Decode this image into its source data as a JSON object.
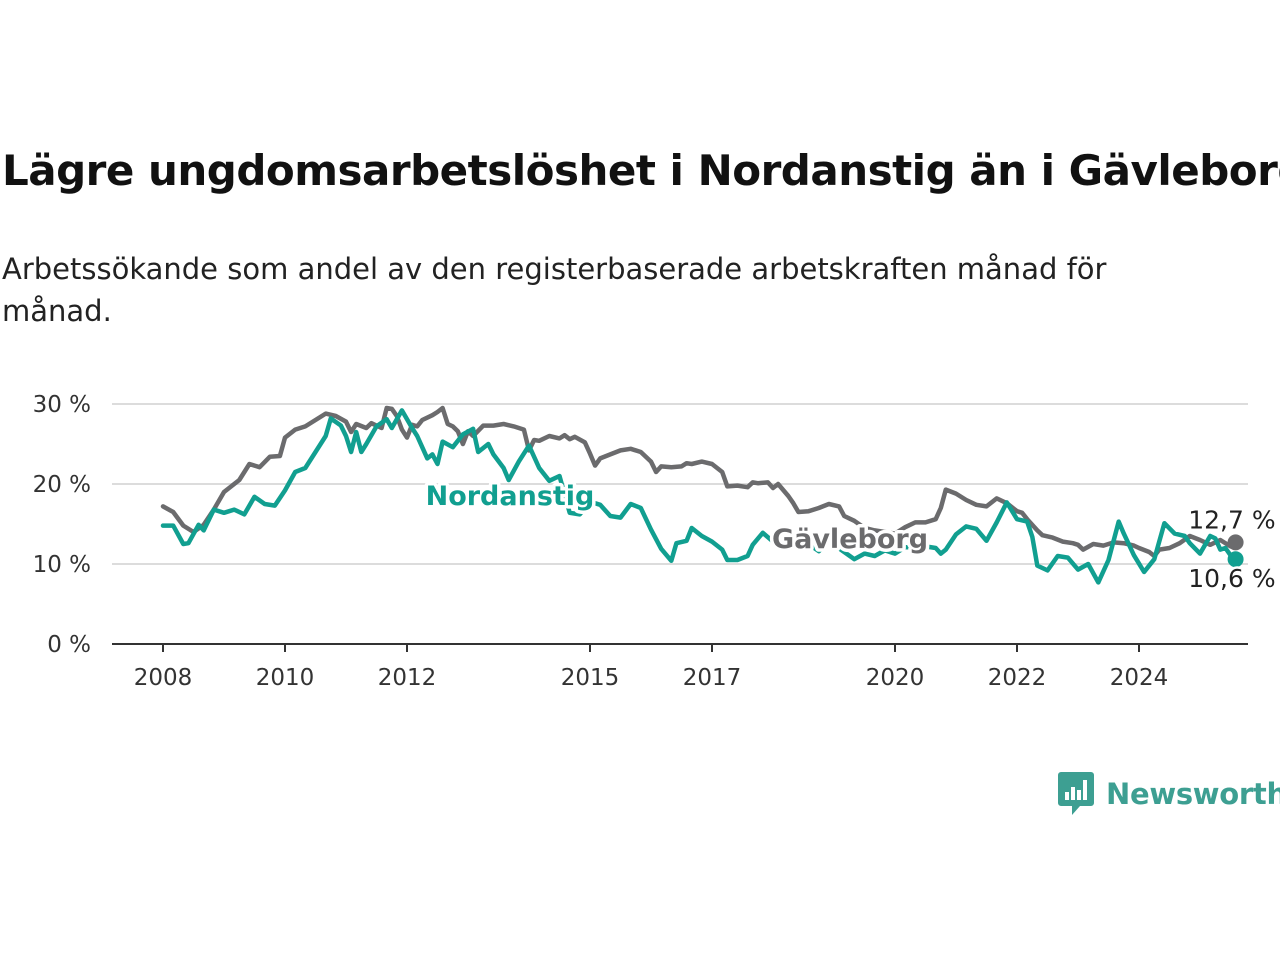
{
  "title": "Lägre ungdomsarbetslöshet i Nordanstig än i Gävleborg",
  "subtitle": "Arbetssökande som andel av den registerbaserade arbetskraften månad för månad.",
  "brand": {
    "name": "Newsworthy",
    "icon": "newsworthy-logo-icon",
    "color": "#3d9f92"
  },
  "chart_data": {
    "type": "line",
    "x_ticks": [
      "2008",
      "2010",
      "2012",
      "2015",
      "2017",
      "2020",
      "2022",
      "2024"
    ],
    "y_ticks": [
      "0 %",
      "10 %",
      "20 %",
      "30 %"
    ],
    "ylim": [
      0,
      30
    ],
    "xlim": [
      "2007-01",
      "2025-09"
    ],
    "grid": true,
    "legend": "inline labels",
    "series": [
      {
        "name": "Gävleborg",
        "color": "#6b6b6d",
        "end_label": "12,7 %",
        "points": [
          [
            "2008-01",
            17.2
          ],
          [
            "2008-03",
            16.5
          ],
          [
            "2008-05",
            14.8
          ],
          [
            "2008-07",
            14.0
          ],
          [
            "2008-09",
            14.9
          ],
          [
            "2008-11",
            16.8
          ],
          [
            "2009-01",
            19.0
          ],
          [
            "2009-04",
            20.5
          ],
          [
            "2009-06",
            22.5
          ],
          [
            "2009-08",
            22.1
          ],
          [
            "2009-10",
            23.4
          ],
          [
            "2009-12",
            23.5
          ],
          [
            "2010-01",
            25.8
          ],
          [
            "2010-03",
            26.8
          ],
          [
            "2010-05",
            27.2
          ],
          [
            "2010-07",
            28.0
          ],
          [
            "2010-09",
            28.8
          ],
          [
            "2010-11",
            28.5
          ],
          [
            "2011-01",
            27.8
          ],
          [
            "2011-02",
            26.5
          ],
          [
            "2011-03",
            27.5
          ],
          [
            "2011-05",
            27.0
          ],
          [
            "2011-06",
            27.6
          ],
          [
            "2011-08",
            27.0
          ],
          [
            "2011-09",
            29.5
          ],
          [
            "2011-10",
            29.4
          ],
          [
            "2011-11",
            28.5
          ],
          [
            "2011-12",
            26.8
          ],
          [
            "2012-01",
            25.8
          ],
          [
            "2012-02",
            27.4
          ],
          [
            "2012-03",
            27.2
          ],
          [
            "2012-04",
            28.0
          ],
          [
            "2012-06",
            28.6
          ],
          [
            "2012-07",
            29.0
          ],
          [
            "2012-08",
            29.5
          ],
          [
            "2012-09",
            27.5
          ],
          [
            "2012-10",
            27.2
          ],
          [
            "2012-11",
            26.6
          ],
          [
            "2012-12",
            25.0
          ],
          [
            "2013-01",
            26.6
          ],
          [
            "2013-02",
            26.0
          ],
          [
            "2013-04",
            27.3
          ],
          [
            "2013-06",
            27.3
          ],
          [
            "2013-08",
            27.5
          ],
          [
            "2013-10",
            27.2
          ],
          [
            "2013-12",
            26.8
          ],
          [
            "2014-01",
            24.2
          ],
          [
            "2014-02",
            25.5
          ],
          [
            "2014-03",
            25.4
          ],
          [
            "2014-05",
            26.0
          ],
          [
            "2014-07",
            25.7
          ],
          [
            "2014-08",
            26.1
          ],
          [
            "2014-09",
            25.6
          ],
          [
            "2014-10",
            25.9
          ],
          [
            "2014-12",
            25.2
          ],
          [
            "2015-01",
            23.8
          ],
          [
            "2015-02",
            22.3
          ],
          [
            "2015-03",
            23.2
          ],
          [
            "2015-05",
            23.7
          ],
          [
            "2015-07",
            24.2
          ],
          [
            "2015-09",
            24.4
          ],
          [
            "2015-11",
            24.0
          ],
          [
            "2016-01",
            22.8
          ],
          [
            "2016-02",
            21.5
          ],
          [
            "2016-03",
            22.2
          ],
          [
            "2016-05",
            22.1
          ],
          [
            "2016-07",
            22.2
          ],
          [
            "2016-08",
            22.6
          ],
          [
            "2016-09",
            22.5
          ],
          [
            "2016-11",
            22.8
          ],
          [
            "2017-01",
            22.5
          ],
          [
            "2017-03",
            21.5
          ],
          [
            "2017-04",
            19.7
          ],
          [
            "2017-06",
            19.8
          ],
          [
            "2017-08",
            19.6
          ],
          [
            "2017-09",
            20.2
          ],
          [
            "2017-10",
            20.1
          ],
          [
            "2017-12",
            20.2
          ],
          [
            "2018-01",
            19.5
          ],
          [
            "2018-02",
            20.0
          ],
          [
            "2018-04",
            18.5
          ],
          [
            "2018-05",
            17.6
          ],
          [
            "2018-06",
            16.5
          ],
          [
            "2018-08",
            16.6
          ],
          [
            "2018-10",
            17.0
          ],
          [
            "2018-12",
            17.5
          ],
          [
            "2019-02",
            17.2
          ],
          [
            "2019-03",
            16.0
          ],
          [
            "2019-05",
            15.4
          ],
          [
            "2019-07",
            14.5
          ],
          [
            "2019-09",
            14.2
          ],
          [
            "2019-11",
            14.0
          ],
          [
            "2020-01",
            13.8
          ],
          [
            "2020-03",
            14.6
          ],
          [
            "2020-05",
            15.2
          ],
          [
            "2020-07",
            15.2
          ],
          [
            "2020-09",
            15.6
          ],
          [
            "2020-10",
            17.0
          ],
          [
            "2020-11",
            19.3
          ],
          [
            "2021-01",
            18.8
          ],
          [
            "2021-03",
            18.0
          ],
          [
            "2021-05",
            17.4
          ],
          [
            "2021-07",
            17.2
          ],
          [
            "2021-09",
            18.2
          ],
          [
            "2021-11",
            17.6
          ],
          [
            "2022-01",
            16.6
          ],
          [
            "2022-02",
            16.4
          ],
          [
            "2022-03",
            15.6
          ],
          [
            "2022-05",
            14.2
          ],
          [
            "2022-06",
            13.6
          ],
          [
            "2022-08",
            13.3
          ],
          [
            "2022-10",
            12.8
          ],
          [
            "2022-12",
            12.6
          ],
          [
            "2023-01",
            12.4
          ],
          [
            "2023-02",
            11.8
          ],
          [
            "2023-04",
            12.5
          ],
          [
            "2023-06",
            12.3
          ],
          [
            "2023-08",
            12.7
          ],
          [
            "2023-10",
            12.6
          ],
          [
            "2023-12",
            12.3
          ],
          [
            "2024-01",
            12.0
          ],
          [
            "2024-03",
            11.5
          ],
          [
            "2024-04",
            11.0
          ],
          [
            "2024-05",
            11.8
          ],
          [
            "2024-07",
            12.0
          ],
          [
            "2024-09",
            12.6
          ],
          [
            "2024-11",
            13.5
          ],
          [
            "2025-01",
            13.0
          ],
          [
            "2025-03",
            12.4
          ],
          [
            "2025-05",
            13.0
          ],
          [
            "2025-07",
            12.2
          ],
          [
            "2025-08",
            12.7
          ]
        ]
      },
      {
        "name": "Nordanstig",
        "color": "#119f90",
        "end_label": "10,6 %",
        "points": [
          [
            "2008-01",
            14.8
          ],
          [
            "2008-03",
            14.8
          ],
          [
            "2008-05",
            12.5
          ],
          [
            "2008-06",
            12.6
          ],
          [
            "2008-08",
            14.9
          ],
          [
            "2008-09",
            14.2
          ],
          [
            "2008-11",
            16.8
          ],
          [
            "2009-01",
            16.4
          ],
          [
            "2009-03",
            16.8
          ],
          [
            "2009-05",
            16.2
          ],
          [
            "2009-07",
            18.4
          ],
          [
            "2009-09",
            17.5
          ],
          [
            "2009-11",
            17.3
          ],
          [
            "2010-01",
            19.2
          ],
          [
            "2010-03",
            21.5
          ],
          [
            "2010-05",
            22.0
          ],
          [
            "2010-07",
            24.0
          ],
          [
            "2010-09",
            26.0
          ],
          [
            "2010-10",
            28.2
          ],
          [
            "2010-12",
            27.3
          ],
          [
            "2011-01",
            26.0
          ],
          [
            "2011-02",
            24.0
          ],
          [
            "2011-03",
            26.5
          ],
          [
            "2011-04",
            24.0
          ],
          [
            "2011-05",
            25.0
          ],
          [
            "2011-07",
            27.2
          ],
          [
            "2011-09",
            28.1
          ],
          [
            "2011-10",
            27.0
          ],
          [
            "2011-12",
            29.2
          ],
          [
            "2012-02",
            27.0
          ],
          [
            "2012-03",
            26.0
          ],
          [
            "2012-05",
            23.2
          ],
          [
            "2012-06",
            23.7
          ],
          [
            "2012-07",
            22.5
          ],
          [
            "2012-08",
            25.3
          ],
          [
            "2012-10",
            24.6
          ],
          [
            "2012-12",
            26.2
          ],
          [
            "2013-02",
            26.9
          ],
          [
            "2013-03",
            24.0
          ],
          [
            "2013-05",
            25.0
          ],
          [
            "2013-06",
            23.7
          ],
          [
            "2013-08",
            22.0
          ],
          [
            "2013-09",
            20.5
          ],
          [
            "2013-11",
            22.8
          ],
          [
            "2014-01",
            24.8
          ],
          [
            "2014-03",
            22.0
          ],
          [
            "2014-05",
            20.4
          ],
          [
            "2014-07",
            21.0
          ],
          [
            "2014-09",
            16.4
          ],
          [
            "2014-11",
            16.2
          ],
          [
            "2015-01",
            17.8
          ],
          [
            "2015-03",
            17.4
          ],
          [
            "2015-05",
            16.0
          ],
          [
            "2015-07",
            15.8
          ],
          [
            "2015-09",
            17.5
          ],
          [
            "2015-11",
            17.0
          ],
          [
            "2016-01",
            14.3
          ],
          [
            "2016-03",
            11.9
          ],
          [
            "2016-05",
            10.4
          ],
          [
            "2016-06",
            12.6
          ],
          [
            "2016-08",
            12.9
          ],
          [
            "2016-09",
            14.5
          ],
          [
            "2016-11",
            13.5
          ],
          [
            "2017-01",
            12.8
          ],
          [
            "2017-03",
            11.8
          ],
          [
            "2017-04",
            10.5
          ],
          [
            "2017-06",
            10.5
          ],
          [
            "2017-08",
            11.0
          ],
          [
            "2017-09",
            12.4
          ],
          [
            "2017-11",
            13.9
          ],
          [
            "2018-01",
            12.8
          ],
          [
            "2018-03",
            13.5
          ],
          [
            "2018-05",
            12.4
          ],
          [
            "2018-06",
            13.3
          ],
          [
            "2018-08",
            12.5
          ],
          [
            "2018-10",
            11.6
          ],
          [
            "2018-12",
            12.8
          ],
          [
            "2019-01",
            12.4
          ],
          [
            "2019-03",
            11.5
          ],
          [
            "2019-05",
            10.6
          ],
          [
            "2019-07",
            11.3
          ],
          [
            "2019-09",
            11.0
          ],
          [
            "2019-11",
            11.7
          ],
          [
            "2020-01",
            11.3
          ],
          [
            "2020-03",
            12.1
          ],
          [
            "2020-05",
            12.1
          ],
          [
            "2020-07",
            12.2
          ],
          [
            "2020-09",
            12.0
          ],
          [
            "2020-10",
            11.3
          ],
          [
            "2020-11",
            11.8
          ],
          [
            "2021-01",
            13.7
          ],
          [
            "2021-03",
            14.7
          ],
          [
            "2021-05",
            14.4
          ],
          [
            "2021-07",
            12.9
          ],
          [
            "2021-09",
            15.2
          ],
          [
            "2021-11",
            17.7
          ],
          [
            "2022-01",
            15.6
          ],
          [
            "2022-03",
            15.3
          ],
          [
            "2022-04",
            13.4
          ],
          [
            "2022-05",
            9.8
          ],
          [
            "2022-07",
            9.2
          ],
          [
            "2022-09",
            11.0
          ],
          [
            "2022-11",
            10.8
          ],
          [
            "2023-01",
            9.3
          ],
          [
            "2023-03",
            10.0
          ],
          [
            "2023-05",
            7.7
          ],
          [
            "2023-07",
            10.5
          ],
          [
            "2023-09",
            15.3
          ],
          [
            "2023-10",
            13.8
          ],
          [
            "2023-12",
            11.1
          ],
          [
            "2024-02",
            9.0
          ],
          [
            "2024-04",
            10.6
          ],
          [
            "2024-06",
            15.1
          ],
          [
            "2024-08",
            13.8
          ],
          [
            "2024-10",
            13.5
          ],
          [
            "2024-11",
            12.6
          ],
          [
            "2025-01",
            11.3
          ],
          [
            "2025-03",
            13.5
          ],
          [
            "2025-04",
            13.2
          ],
          [
            "2025-05",
            11.8
          ],
          [
            "2025-06",
            12.0
          ],
          [
            "2025-07",
            11.1
          ],
          [
            "2025-08",
            10.6
          ]
        ]
      }
    ]
  }
}
